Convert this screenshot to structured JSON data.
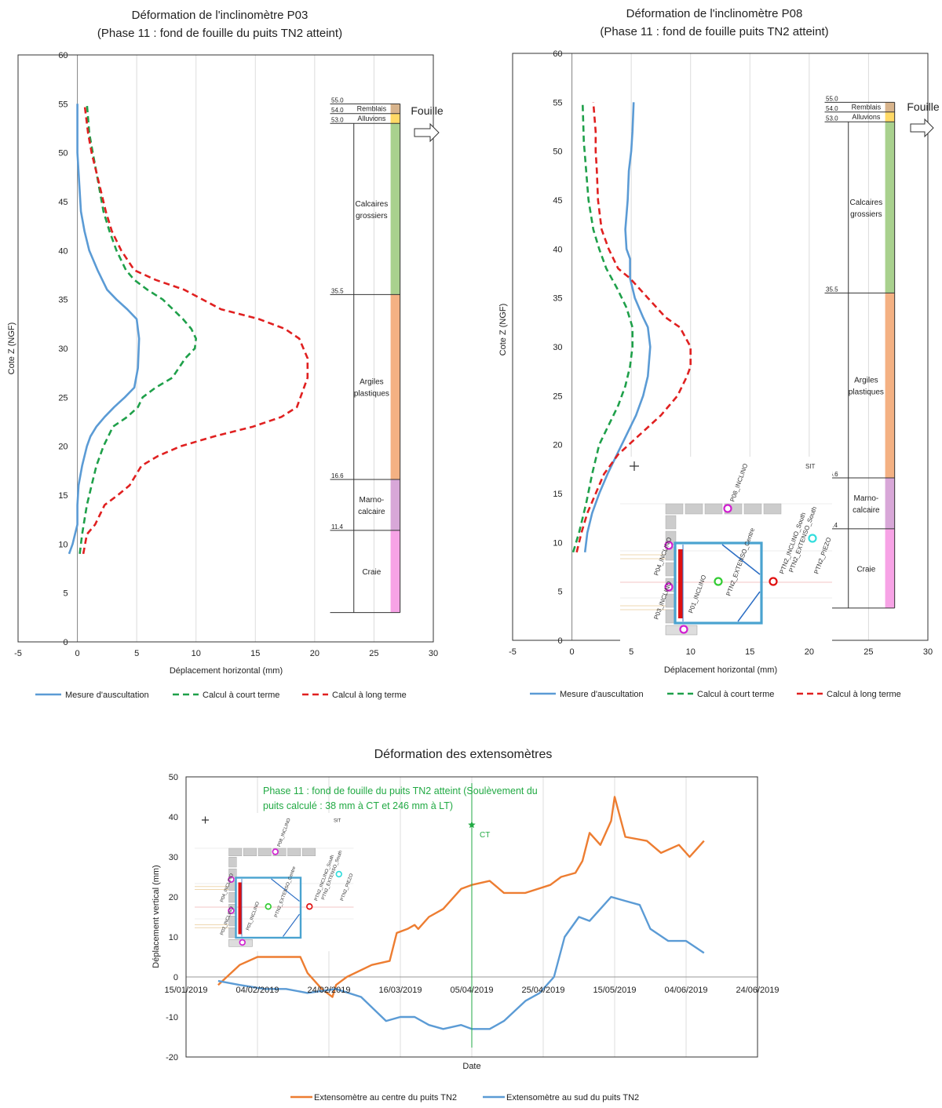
{
  "colors": {
    "measure": "#5b9bd5",
    "short_term": "#1fa04a",
    "long_term": "#e02020",
    "ext_center": "#ed7d31",
    "ext_south": "#5b9bd5",
    "phase_line": "#22aa44",
    "remblais": "#d8b48c",
    "alluvions": "#ffd966",
    "calcaires": "#a9d18e",
    "argiles": "#f4b183",
    "marno": "#d8a7d8",
    "craie": "#f7a3e6"
  },
  "site_plan": {
    "labels": [
      "P08_INCLINO",
      "P04_INCLINO",
      "P03_INCLINO",
      "P01_INCLINO",
      "PTN2_EXTENSO_Centre",
      "PTN2_INCLINO_South",
      "PTN2_EXTENSO_South",
      "PTN2_PIEZO",
      "SIT"
    ]
  },
  "chart_data": [
    {
      "type": "line",
      "title": "Déformation de l'inclinomètre P03",
      "subtitle": "(Phase 11 : fond de fouille du puits TN2 atteint)",
      "xlabel": "Déplacement horizontal (mm)",
      "ylabel": "Cote Z (NGF)",
      "xlim": [
        -5,
        30
      ],
      "ylim": [
        0,
        60
      ],
      "xticks": [
        -5,
        0,
        5,
        10,
        15,
        20,
        25,
        30
      ],
      "yticks": [
        0,
        5,
        10,
        15,
        20,
        25,
        30,
        35,
        40,
        45,
        50,
        55,
        60
      ],
      "grid": "vertical",
      "legend": "bottom",
      "fouille_label": "Fouille",
      "series": [
        {
          "name": "Mesure d'auscultation",
          "key": "measure",
          "style": "solid",
          "x": [
            -0.7,
            -0.4,
            -0.2,
            0.0,
            0.0,
            0.1,
            0.4,
            0.8,
            1.1,
            1.6,
            2.3,
            3.1,
            4.0,
            4.8,
            5.1,
            5.2,
            5.0,
            4.2,
            3.3,
            2.5,
            1.7,
            1.0,
            0.6,
            0.3,
            0.2,
            0.1,
            0.0,
            0.0
          ],
          "y": [
            9,
            10,
            11,
            12,
            14,
            16,
            18,
            20,
            21,
            22,
            23,
            24,
            25,
            26,
            28,
            31,
            33,
            34,
            35,
            36,
            38,
            40,
            42,
            44,
            46,
            48,
            50,
            55
          ]
        },
        {
          "name": "Calcul à court terme",
          "key": "short_term",
          "style": "dashed",
          "x": [
            0.2,
            0.4,
            0.8,
            1.2,
            1.6,
            2.2,
            3.0,
            4.2,
            5.1,
            5.5,
            6.6,
            8.0,
            9.1,
            9.9,
            10.0,
            9.6,
            8.9,
            7.2,
            5.9,
            4.8,
            4.1,
            3.3,
            2.7,
            2.2,
            1.9,
            1.6,
            1.3,
            1.0,
            0.8
          ],
          "y": [
            9,
            11,
            14,
            16,
            18,
            20,
            22,
            23,
            24,
            25,
            26,
            27,
            29,
            30,
            31,
            32,
            33,
            35,
            36,
            37,
            38,
            40,
            42,
            44,
            46,
            48,
            50,
            52,
            55
          ]
        },
        {
          "name": "Calcul à long terme",
          "key": "long_term",
          "style": "dashed",
          "x": [
            0.5,
            0.8,
            1.5,
            2.3,
            3.4,
            4.4,
            5.4,
            6.8,
            8.7,
            11.5,
            14.8,
            17.2,
            18.5,
            19.4,
            19.4,
            18.7,
            17.5,
            15.3,
            12.1,
            9.0,
            6.6,
            4.8,
            3.7,
            2.9,
            2.4,
            2.0,
            1.6,
            1.2,
            0.9,
            0.6
          ],
          "y": [
            9,
            11,
            12,
            14,
            15,
            16,
            18,
            19,
            20,
            21,
            22,
            23,
            24,
            27,
            29,
            31,
            32,
            33,
            34,
            36,
            37,
            38,
            40,
            42,
            44,
            46,
            48,
            50,
            52,
            55
          ]
        }
      ],
      "layers": [
        {
          "name": "Remblais",
          "top": 55.0,
          "bottom": 54.0,
          "color_key": "remblais",
          "top_label": "55.0"
        },
        {
          "name": "Alluvions",
          "top": 54.0,
          "bottom": 53.0,
          "color_key": "alluvions",
          "top_label": "54.0"
        },
        {
          "name": "Calcaires grossiers",
          "top": 53.0,
          "bottom": 35.5,
          "color_key": "calcaires",
          "top_label": "53.0"
        },
        {
          "name": "Argiles plastiques",
          "top": 35.5,
          "bottom": 16.6,
          "color_key": "argiles",
          "top_label": "35.5"
        },
        {
          "name": "Marno-calcaire",
          "top": 16.6,
          "bottom": 11.4,
          "color_key": "marno",
          "top_label": "16.6"
        },
        {
          "name": "Craie",
          "top": 11.4,
          "bottom": 3.0,
          "color_key": "craie",
          "top_label": "11.4"
        }
      ]
    },
    {
      "type": "line",
      "title": "Déformation de l'inclinomètre P08",
      "subtitle": "(Phase 11 : fond de fouille puits TN2 atteint)",
      "xlabel": "Déplacement horizontal (mm)",
      "ylabel": "Cote Z (NGF)",
      "xlim": [
        -5,
        30
      ],
      "ylim": [
        0,
        60
      ],
      "xticks": [
        -5,
        0,
        5,
        10,
        15,
        20,
        25,
        30
      ],
      "yticks": [
        0,
        5,
        10,
        15,
        20,
        25,
        30,
        35,
        40,
        45,
        50,
        55,
        60
      ],
      "grid": "vertical",
      "legend": "bottom",
      "fouille_label": "Fouille",
      "series": [
        {
          "name": "Mesure d'auscultation",
          "key": "measure",
          "style": "solid",
          "x": [
            1.1,
            1.3,
            1.7,
            2.3,
            3.0,
            3.8,
            4.6,
            5.4,
            6.0,
            6.4,
            6.6,
            6.4,
            6.0,
            5.3,
            5.1,
            4.9,
            4.9,
            4.6,
            4.5,
            4.7,
            4.8,
            5.0,
            5.1,
            5.2
          ],
          "y": [
            9,
            11,
            13,
            15,
            17,
            19,
            21,
            23,
            25,
            27,
            30,
            32,
            33,
            35,
            36,
            37,
            39,
            40,
            42,
            45,
            48,
            50,
            52,
            55
          ]
        },
        {
          "name": "Calcul à court terme",
          "key": "short_term",
          "style": "dashed",
          "x": [
            0.1,
            0.6,
            1.2,
            1.7,
            2.3,
            3.1,
            3.9,
            4.5,
            4.9,
            5.1,
            5.1,
            4.6,
            3.8,
            2.9,
            2.3,
            1.8,
            1.4,
            1.2,
            1.0,
            0.9
          ],
          "y": [
            9,
            11,
            14,
            17,
            20,
            22,
            24,
            26,
            28,
            30,
            32,
            34,
            36,
            38,
            40,
            42,
            45,
            48,
            51,
            55
          ]
        },
        {
          "name": "Calcul à long terme",
          "key": "long_term",
          "style": "dashed",
          "x": [
            0.4,
            0.8,
            1.3,
            2.0,
            2.7,
            3.9,
            5.7,
            7.5,
            8.9,
            9.7,
            10.0,
            10.0,
            9.1,
            7.9,
            6.4,
            4.9,
            3.9,
            3.1,
            2.5,
            2.2,
            2.1,
            2.0,
            2.0,
            1.8
          ],
          "y": [
            9,
            11,
            13,
            15,
            17,
            19,
            21,
            23,
            25,
            27,
            28,
            30,
            32,
            33,
            35,
            37,
            38,
            40,
            42,
            45,
            48,
            50,
            52,
            55
          ]
        }
      ],
      "layers": [
        {
          "name": "Remblais",
          "top": 55.0,
          "bottom": 54.0,
          "color_key": "remblais",
          "top_label": "55.0"
        },
        {
          "name": "Alluvions",
          "top": 54.0,
          "bottom": 53.0,
          "color_key": "alluvions",
          "top_label": "54.0"
        },
        {
          "name": "Calcaires grossiers",
          "top": 53.0,
          "bottom": 35.5,
          "color_key": "calcaires",
          "top_label": "53.0"
        },
        {
          "name": "Argiles plastiques",
          "top": 35.5,
          "bottom": 16.6,
          "color_key": "argiles",
          "top_label": "35.5"
        },
        {
          "name": "Marno-calcaire",
          "top": 16.6,
          "bottom": 11.4,
          "color_key": "marno",
          "top_label": "16.6"
        },
        {
          "name": "Craie",
          "top": 11.4,
          "bottom": 3.3,
          "color_key": "craie",
          "top_label": "11.4"
        }
      ]
    },
    {
      "type": "line",
      "title": "Déformation des extensomètres",
      "xlabel": "Date",
      "ylabel": "Déplacement vertical (mm)",
      "ylim": [
        -20,
        50
      ],
      "yticks": [
        -20,
        -10,
        0,
        10,
        20,
        30,
        40,
        50
      ],
      "xlim": [
        "2019-01-15",
        "2019-06-24"
      ],
      "xticks": [
        "15/01/2019",
        "04/02/2019",
        "24/02/2019",
        "16/03/2019",
        "05/04/2019",
        "25/04/2019",
        "15/05/2019",
        "04/06/2019",
        "24/06/2019"
      ],
      "grid": "vertical",
      "legend": "bottom",
      "annotation": {
        "date": "2019-04-05",
        "text_lines": [
          "Phase 11 : fond de fouille du puits TN2 atteint (Soulèvement du",
          "puits calculé : 38  mm à CT et 246 mm à LT)"
        ],
        "marker_label": "CT",
        "marker_value": 38
      },
      "series": [
        {
          "name": "Extensomètre au centre du puits TN2",
          "key": "ext_center",
          "x": [
            "2019-01-24",
            "2019-01-30",
            "2019-02-04",
            "2019-02-10",
            "2019-02-16",
            "2019-02-18",
            "2019-02-22",
            "2019-02-25",
            "2019-02-26",
            "2019-03-01",
            "2019-03-08",
            "2019-03-13",
            "2019-03-15",
            "2019-03-18",
            "2019-03-20",
            "2019-03-21",
            "2019-03-24",
            "2019-03-28",
            "2019-04-02",
            "2019-04-05",
            "2019-04-10",
            "2019-04-14",
            "2019-04-20",
            "2019-04-27",
            "2019-04-30",
            "2019-05-04",
            "2019-05-06",
            "2019-05-08",
            "2019-05-11",
            "2019-05-14",
            "2019-05-15",
            "2019-05-18",
            "2019-05-24",
            "2019-05-28",
            "2019-06-02",
            "2019-06-05",
            "2019-06-09"
          ],
          "y": [
            -2,
            3,
            5,
            5,
            5,
            1,
            -3,
            -5,
            -2,
            0,
            3,
            4,
            11,
            12,
            13,
            12,
            15,
            17,
            22,
            23,
            24,
            21,
            21,
            23,
            25,
            26,
            29,
            36,
            33,
            39,
            45,
            35,
            34,
            31,
            33,
            30,
            34
          ]
        },
        {
          "name": "Extensomètre au sud du puits TN2",
          "key": "ext_south",
          "x": [
            "2019-01-24",
            "2019-01-30",
            "2019-02-06",
            "2019-02-12",
            "2019-02-18",
            "2019-02-26",
            "2019-03-05",
            "2019-03-12",
            "2019-03-16",
            "2019-03-20",
            "2019-03-24",
            "2019-03-28",
            "2019-04-02",
            "2019-04-05",
            "2019-04-10",
            "2019-04-14",
            "2019-04-20",
            "2019-04-24",
            "2019-04-28",
            "2019-05-01",
            "2019-05-05",
            "2019-05-08",
            "2019-05-11",
            "2019-05-14",
            "2019-05-18",
            "2019-05-22",
            "2019-05-25",
            "2019-05-30",
            "2019-06-04",
            "2019-06-09"
          ],
          "y": [
            -1,
            -2,
            -3,
            -3,
            -4,
            -3,
            -5,
            -11,
            -10,
            -10,
            -12,
            -13,
            -12,
            -13,
            -13,
            -11,
            -6,
            -4,
            0,
            10,
            15,
            14,
            17,
            20,
            19,
            18,
            12,
            9,
            9,
            6
          ]
        }
      ]
    }
  ]
}
